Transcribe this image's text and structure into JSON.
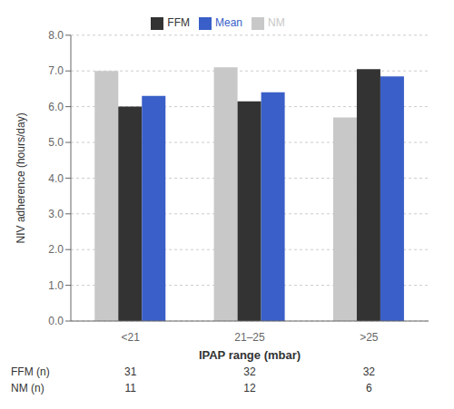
{
  "chart_data": {
    "type": "bar",
    "categories": [
      "<21",
      "21–25",
      ">25"
    ],
    "series": [
      {
        "name": "NM",
        "color": "#c8c8c8",
        "values": [
          7.0,
          7.1,
          5.7
        ]
      },
      {
        "name": "FFM",
        "color": "#333333",
        "values": [
          6.0,
          6.15,
          7.05
        ]
      },
      {
        "name": "Mean",
        "color": "#3a5fc8",
        "values": [
          6.3,
          6.4,
          6.85
        ]
      }
    ],
    "xlabel": "IPAP range (mbar)",
    "ylabel": "NIV adherence (hours/day)",
    "ylim": [
      0.0,
      8.0
    ],
    "yticks": [
      {
        "value": 0,
        "label": "0.0"
      },
      {
        "value": 1,
        "label": "1.0"
      },
      {
        "value": 2,
        "label": "2.0"
      },
      {
        "value": 3,
        "label": "3.0"
      },
      {
        "value": 4,
        "label": "4.0"
      },
      {
        "value": 5,
        "label": "5.0"
      },
      {
        "value": 6,
        "label": "6.0"
      },
      {
        "value": 7,
        "label": "7.0"
      },
      {
        "value": 8,
        "label": "8.0"
      }
    ],
    "grid": true,
    "legend": "top",
    "table": [
      {
        "label": "FFM (n)",
        "values": [
          31,
          32,
          32
        ]
      },
      {
        "label": "NM (n)",
        "values": [
          11,
          12,
          6
        ]
      }
    ]
  }
}
